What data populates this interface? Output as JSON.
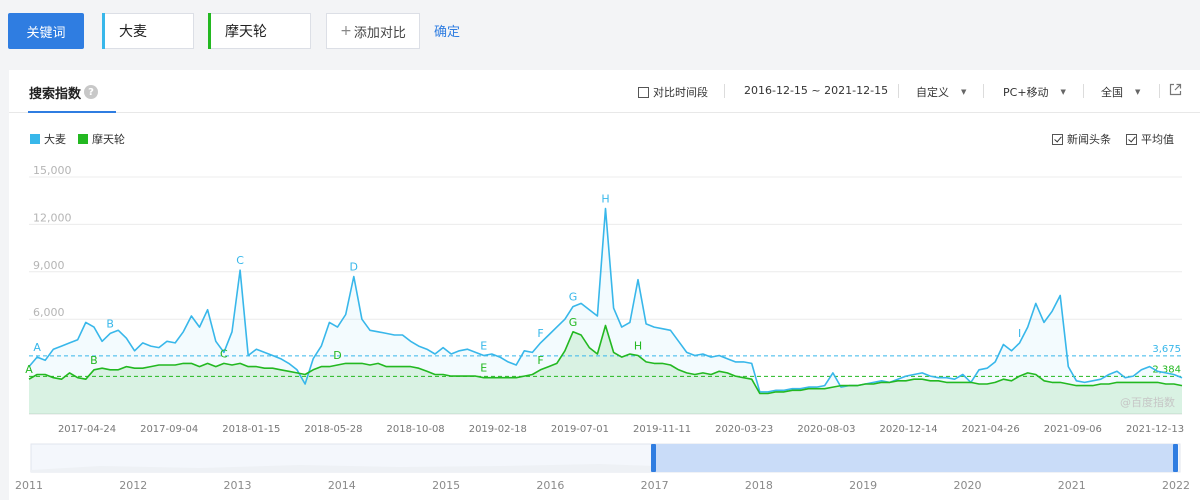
{
  "toolbar": {
    "keyword_button": "关键词",
    "keywords": [
      {
        "label": "大麦",
        "color": "#38b7ea"
      },
      {
        "label": "摩天轮",
        "color": "#23b821"
      }
    ],
    "add_compare": "添加对比",
    "confirm": "确定"
  },
  "panel": {
    "tab_title": "搜索指数",
    "help_glyph": "?",
    "compare_period": "对比时间段",
    "date_range": "2016-12-15 ~ 2021-12-15",
    "custom": "自定义",
    "device": "PC+移动",
    "region": "全国",
    "news_headlines": "新闻头条",
    "average": "平均值",
    "watermark": "@百度指数"
  },
  "colors": {
    "blue": "#38b7ea",
    "green": "#23b821",
    "accent": "#2f7de1"
  },
  "chart_data": {
    "type": "line",
    "y_ticks": [
      "15,000",
      "12,000",
      "9,000",
      "6,000"
    ],
    "ylim": [
      0,
      15000
    ],
    "x_ticks": [
      "2017-04-24",
      "2017-09-04",
      "2018-01-15",
      "2018-05-28",
      "2018-10-08",
      "2019-02-18",
      "2019-07-01",
      "2019-11-11",
      "2020-03-23",
      "2020-08-03",
      "2020-12-14",
      "2021-04-26",
      "2021-09-06",
      "2021-12-13"
    ],
    "x_range": [
      "2016-12-15",
      "2021-12-15"
    ],
    "grid": true,
    "legend_position": "top-left",
    "series": [
      {
        "name": "大麦",
        "color": "#38b7ea",
        "average": 3675,
        "average_label": "3,675",
        "values": [
          3000,
          3600,
          3400,
          4100,
          4300,
          4500,
          4700,
          5800,
          5500,
          4600,
          5100,
          5300,
          4800,
          4000,
          4500,
          4300,
          4200,
          4600,
          4500,
          5200,
          6200,
          5500,
          6600,
          4600,
          3900,
          5200,
          9100,
          3700,
          4100,
          3900,
          3700,
          3500,
          3200,
          2800,
          1900,
          3500,
          4300,
          5800,
          5500,
          6300,
          8700,
          6000,
          5300,
          5200,
          5100,
          5000,
          5000,
          4600,
          4300,
          4100,
          3800,
          4200,
          3800,
          4000,
          4100,
          3900,
          3700,
          3800,
          3600,
          3300,
          3100,
          4000,
          3900,
          4500,
          5000,
          5500,
          6000,
          6800,
          7000,
          6600,
          6200,
          13000,
          6700,
          5500,
          5800,
          8500,
          5700,
          5500,
          5400,
          5300,
          4600,
          3900,
          3700,
          3800,
          3600,
          3700,
          3500,
          3300,
          3300,
          3200,
          1400,
          1400,
          1500,
          1500,
          1600,
          1600,
          1700,
          1700,
          1800,
          2600,
          1700,
          1800,
          1800,
          1900,
          2000,
          2100,
          2000,
          2200,
          2400,
          2500,
          2600,
          2400,
          2300,
          2300,
          2200,
          2500,
          2000,
          2800,
          2900,
          3300,
          4400,
          4000,
          4500,
          5500,
          7000,
          5800,
          6500,
          7500,
          3000,
          2100,
          2000,
          2100,
          2200,
          2500,
          2700,
          2300,
          2400,
          2800,
          3000,
          2700,
          2600,
          2500,
          2300
        ],
        "annotations": [
          "A",
          "B",
          "C",
          "D",
          "E",
          "F",
          "G",
          "H",
          "I"
        ]
      },
      {
        "name": "摩天轮",
        "color": "#23b821",
        "average": 2384,
        "average_label": "2,384",
        "values": [
          2200,
          2500,
          2500,
          2300,
          2200,
          2600,
          2300,
          2200,
          2800,
          2900,
          2800,
          2800,
          3000,
          2900,
          2900,
          3000,
          3100,
          3100,
          3100,
          3200,
          3200,
          3000,
          3200,
          3000,
          3200,
          3100,
          3200,
          3000,
          3000,
          2900,
          2900,
          2800,
          2700,
          2600,
          2500,
          2800,
          3000,
          3000,
          3100,
          3200,
          3200,
          3200,
          3100,
          3200,
          3000,
          3000,
          3000,
          3000,
          2900,
          2700,
          2500,
          2500,
          2400,
          2400,
          2400,
          2400,
          2300,
          2300,
          2300,
          2300,
          2300,
          2400,
          2500,
          2800,
          3000,
          3200,
          4000,
          5200,
          5000,
          4200,
          3800,
          5600,
          3900,
          3600,
          3800,
          3700,
          3300,
          3200,
          3200,
          3100,
          2800,
          2600,
          2500,
          2600,
          2500,
          2700,
          2600,
          2400,
          2300,
          2200,
          1300,
          1300,
          1400,
          1400,
          1500,
          1500,
          1600,
          1600,
          1600,
          1700,
          1800,
          1800,
          1800,
          1900,
          1900,
          2000,
          2000,
          2100,
          2100,
          2200,
          2200,
          2100,
          2100,
          2000,
          2000,
          2000,
          2000,
          1900,
          1900,
          2000,
          2200,
          2100,
          2400,
          2600,
          2500,
          2100,
          2000,
          2000,
          1900,
          1800,
          1800,
          1800,
          1900,
          1900,
          2000,
          2000,
          2000,
          2000,
          2000,
          2000,
          1900,
          1900,
          1800
        ],
        "annotations": [
          "A",
          "B",
          "C",
          "D",
          "E",
          "F",
          "G",
          "H"
        ]
      }
    ],
    "navigator": {
      "year_ticks": [
        "2011",
        "2012",
        "2013",
        "2014",
        "2015",
        "2016",
        "2017",
        "2018",
        "2019",
        "2020",
        "2021",
        "2022"
      ],
      "selected_range": [
        "2016-12-15",
        "2021-12-15"
      ]
    }
  }
}
